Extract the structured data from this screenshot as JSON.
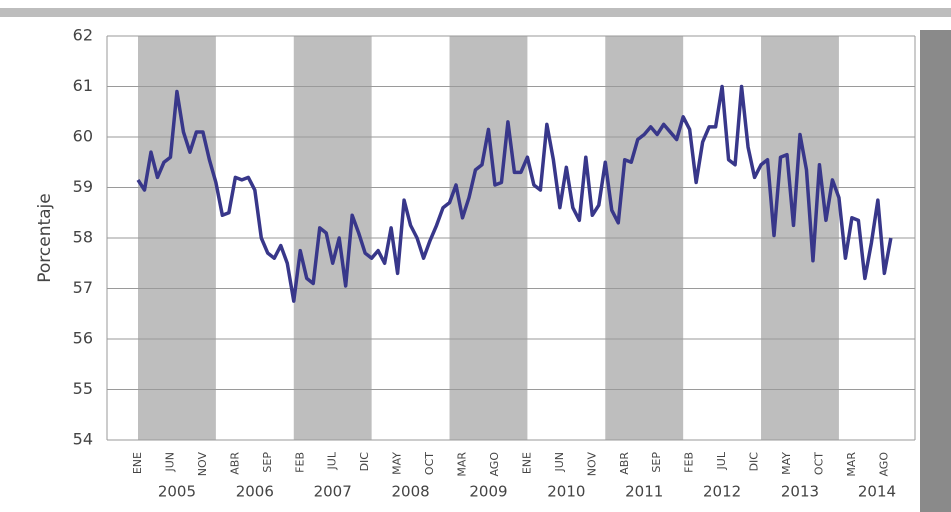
{
  "chart_data": {
    "type": "line",
    "y_label": "Porcentaje",
    "categories": [
      "ENE",
      null,
      null,
      null,
      null,
      "JUN",
      null,
      null,
      null,
      null,
      "NOV",
      null,
      null,
      null,
      null,
      "ABR",
      null,
      null,
      null,
      null,
      "SEP",
      null,
      null,
      null,
      null,
      "FEB",
      null,
      null,
      null,
      null,
      "JUL",
      null,
      null,
      null,
      null,
      "DIC",
      null,
      null,
      null,
      null,
      "MAY",
      null,
      null,
      null,
      null,
      "OCT",
      null,
      null,
      null,
      null,
      "MAR",
      null,
      null,
      null,
      null,
      "AGO",
      null,
      null,
      null,
      null,
      "ENE",
      null,
      null,
      null,
      null,
      "JUN",
      null,
      null,
      null,
      null,
      "NOV",
      null,
      null,
      null,
      null,
      "ABR",
      null,
      null,
      null,
      null,
      "SEP",
      null,
      null,
      null,
      null,
      "FEB",
      null,
      null,
      null,
      null,
      "JUL",
      null,
      null,
      null,
      null,
      "DIC",
      null,
      null,
      null,
      null,
      "MAY",
      null,
      null,
      null,
      null,
      "OCT",
      null,
      null,
      null,
      null,
      "MAR",
      null,
      null,
      null,
      null,
      "AGO",
      null
    ],
    "years": [
      "2005",
      "2006",
      "2007",
      "2008",
      "2009",
      "2010",
      "2011",
      "2012",
      "2013",
      "2014"
    ],
    "series": [
      {
        "color": "#38378a",
        "values": [
          59.15,
          58.95,
          59.7,
          59.2,
          59.5,
          59.6,
          60.9,
          60.1,
          59.7,
          60.1,
          60.1,
          59.55,
          59.1,
          58.45,
          58.5,
          59.2,
          59.15,
          59.2,
          58.95,
          58.0,
          57.7,
          57.6,
          57.85,
          57.5,
          56.75,
          57.75,
          57.2,
          57.1,
          58.2,
          58.1,
          57.5,
          58.0,
          57.05,
          58.45,
          58.1,
          57.7,
          57.6,
          57.75,
          57.5,
          58.2,
          57.3,
          58.75,
          58.25,
          58.0,
          57.6,
          57.95,
          58.25,
          58.6,
          58.7,
          59.05,
          58.4,
          58.8,
          59.35,
          59.45,
          60.15,
          59.05,
          59.1,
          60.3,
          59.3,
          59.3,
          59.6,
          59.05,
          58.95,
          60.25,
          59.55,
          58.6,
          59.4,
          58.6,
          58.35,
          59.6,
          58.45,
          58.65,
          59.5,
          58.55,
          58.3,
          59.55,
          59.5,
          59.95,
          60.05,
          60.2,
          60.05,
          60.25,
          60.1,
          59.95,
          60.4,
          60.15,
          59.1,
          59.9,
          60.2,
          60.2,
          61.0,
          59.55,
          59.45,
          61.0,
          59.8,
          59.2,
          59.45,
          59.55,
          58.05,
          59.6,
          59.65,
          58.25,
          60.05,
          59.35,
          57.55,
          59.45,
          58.35,
          59.15,
          58.8,
          57.6,
          58.4,
          58.35,
          57.2,
          57.9,
          58.75,
          57.3,
          58.0
        ]
      }
    ],
    "ylim": [
      54,
      62
    ],
    "yticks": [
      54,
      55,
      56,
      57,
      58,
      59,
      60,
      61,
      62
    ],
    "grid": true
  }
}
